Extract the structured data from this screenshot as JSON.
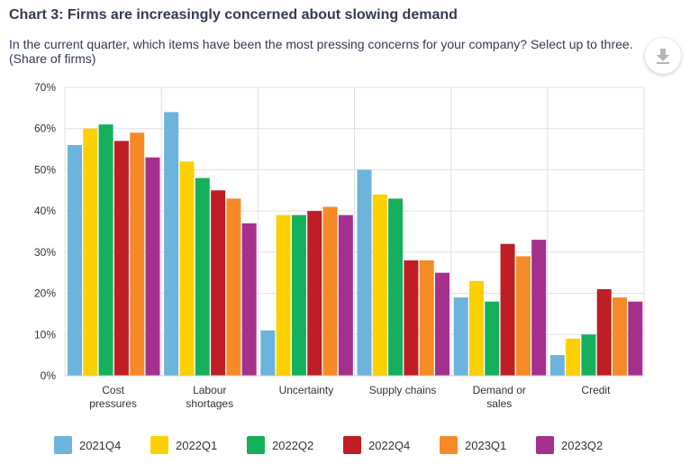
{
  "header": {
    "title": "Chart 3: Firms are increasingly concerned about slowing demand",
    "subtitle": "In the current quarter, which items have been the most pressing concerns for your company? Select up to three. (Share of firms)"
  },
  "toolbar": {
    "download_icon": "download-icon"
  },
  "colors": {
    "2021Q4": "#6cb4dc",
    "2022Q1": "#fdd000",
    "2022Q2": "#14b05c",
    "2022Q4": "#be1e24",
    "2023Q1": "#f68a27",
    "2023Q2": "#a6308e"
  },
  "chart_data": {
    "type": "bar",
    "title": "Chart 3: Firms are increasingly concerned about slowing demand",
    "xlabel": "",
    "ylabel": "",
    "ylim": [
      0,
      70
    ],
    "yticks": [
      "0%",
      "10%",
      "20%",
      "30%",
      "40%",
      "50%",
      "60%",
      "70%"
    ],
    "grid": true,
    "legend": "bottom",
    "categories": [
      [
        "Cost",
        "pressures"
      ],
      [
        "Labour",
        "shortages"
      ],
      [
        "Uncertainty"
      ],
      [
        "Supply chains"
      ],
      [
        "Demand or",
        "sales"
      ],
      [
        "Credit"
      ]
    ],
    "series": [
      {
        "name": "2021Q4",
        "values": [
          56,
          64,
          11,
          50,
          19,
          5
        ]
      },
      {
        "name": "2022Q1",
        "values": [
          60,
          52,
          39,
          44,
          23,
          9
        ]
      },
      {
        "name": "2022Q2",
        "values": [
          61,
          48,
          39,
          43,
          18,
          10
        ]
      },
      {
        "name": "2022Q4",
        "values": [
          57,
          45,
          40,
          28,
          32,
          21
        ]
      },
      {
        "name": "2023Q1",
        "values": [
          59,
          43,
          41,
          28,
          29,
          19
        ]
      },
      {
        "name": "2023Q2",
        "values": [
          53,
          37,
          39,
          25,
          33,
          18
        ]
      }
    ]
  }
}
